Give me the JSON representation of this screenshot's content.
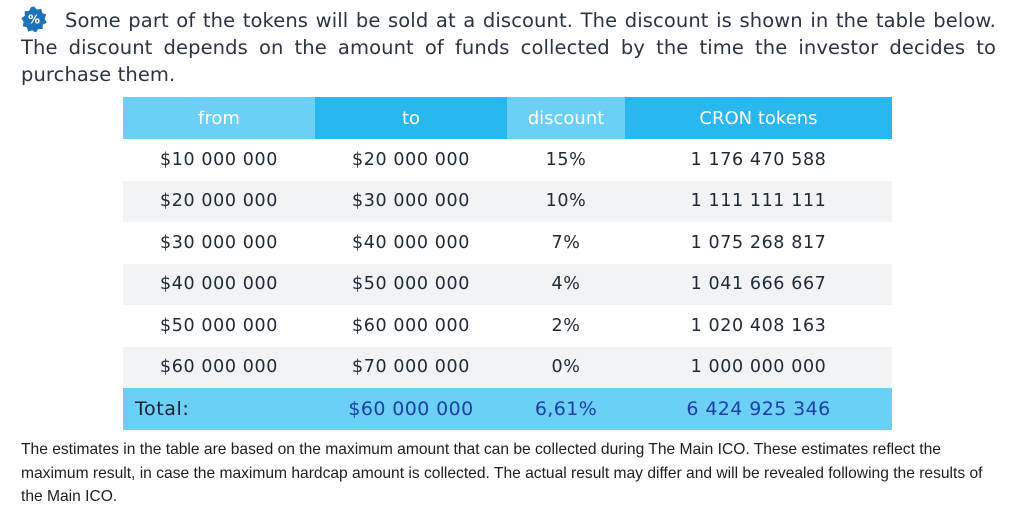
{
  "intro": {
    "badge_symbol": "%",
    "badge_color": "#1e73b8",
    "text": "Some part of the tokens will be sold at a discount. The discount is shown in the table below. The discount depends on the amount of funds collected by the time the investor decides to purchase them."
  },
  "table": {
    "headers": [
      "from",
      "to",
      "discount",
      "CRON tokens"
    ],
    "rows": [
      {
        "from": "$10 000 000",
        "to": "$20 000 000",
        "discount": "15%",
        "tokens": "1 176 470 588"
      },
      {
        "from": "$20 000 000",
        "to": "$30 000 000",
        "discount": "10%",
        "tokens": "1 111 111 111"
      },
      {
        "from": "$30 000 000",
        "to": "$40 000 000",
        "discount": "7%",
        "tokens": "1 075 268 817"
      },
      {
        "from": "$40 000 000",
        "to": "$50 000 000",
        "discount": "4%",
        "tokens": "1 041 666 667"
      },
      {
        "from": "$50 000 000",
        "to": "$60 000 000",
        "discount": "2%",
        "tokens": "1 020 408 163"
      },
      {
        "from": "$60 000 000",
        "to": "$70 000 000",
        "discount": "0%",
        "tokens": "1 000 000 000"
      }
    ],
    "total": {
      "label": "Total:",
      "amount": "$60 000 000",
      "discount": "6,61%",
      "tokens": "6 424 925 346"
    }
  },
  "notes": "The estimates in the table are based on the maximum amount that can be collected during The Main ICO. These estimates reflect the maximum result, in case the maximum hardcap amount is collected. The actual result may differ and will be revealed following the results of the Main ICO.",
  "colors": {
    "header_light": "#6ccff6",
    "header_dark": "#29b7f0",
    "row_alt": "#f1f3f5",
    "total_text": "#1d3fa8"
  }
}
